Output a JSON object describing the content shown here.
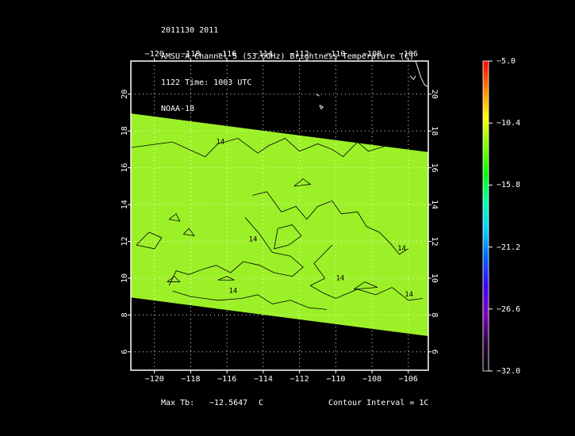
{
  "header": {
    "line1": "2011130 2011",
    "line2": "AMSU-A Channel 5 (53.6GHz) Brightness Temperature (C)",
    "line3": "1122 Time: 1003 UTC",
    "line4": "NOAA-18"
  },
  "axes": {
    "lon_ticks": [
      "−120",
      "−118",
      "−116",
      "−114",
      "−112",
      "−110",
      "−108",
      "−106"
    ],
    "lon_values": [
      -120,
      -118,
      -116,
      -114,
      -112,
      -110,
      -108,
      -106
    ],
    "lat_ticks": [
      "6",
      "8",
      "10",
      "12",
      "14",
      "16",
      "18",
      "20"
    ],
    "lat_values": [
      6,
      8,
      10,
      12,
      14,
      16,
      18,
      20
    ],
    "lon_range": [
      -121.3,
      -104.9
    ],
    "lat_range": [
      5.0,
      21.8
    ]
  },
  "colorbar": {
    "labels": [
      "−5.0",
      "−10.4",
      "−15.8",
      "−21.2",
      "−26.6",
      "−32.0"
    ],
    "values": [
      -5.0,
      -10.4,
      -15.8,
      -21.2,
      -26.6,
      -32.0
    ],
    "colors": [
      "#ff0000",
      "#ff8000",
      "#ffff00",
      "#80ff00",
      "#00ff00",
      "#00ffb0",
      "#00d0ff",
      "#0060ff",
      "#4000ff",
      "#8000c0",
      "#2a003a",
      "#000000"
    ]
  },
  "swath": {
    "corners_lonlat": [
      [
        -121.3,
        18.95
      ],
      [
        -104.9,
        16.85
      ],
      [
        -104.9,
        6.85
      ],
      [
        -121.3,
        8.95
      ]
    ],
    "fill_color": "#9cf028",
    "contour_label": "14"
  },
  "footer": {
    "max_label": "Max Tb:",
    "max_value": "−12.5647",
    "max_unit": "C",
    "contour_text": "Contour Interval = 1C"
  }
}
